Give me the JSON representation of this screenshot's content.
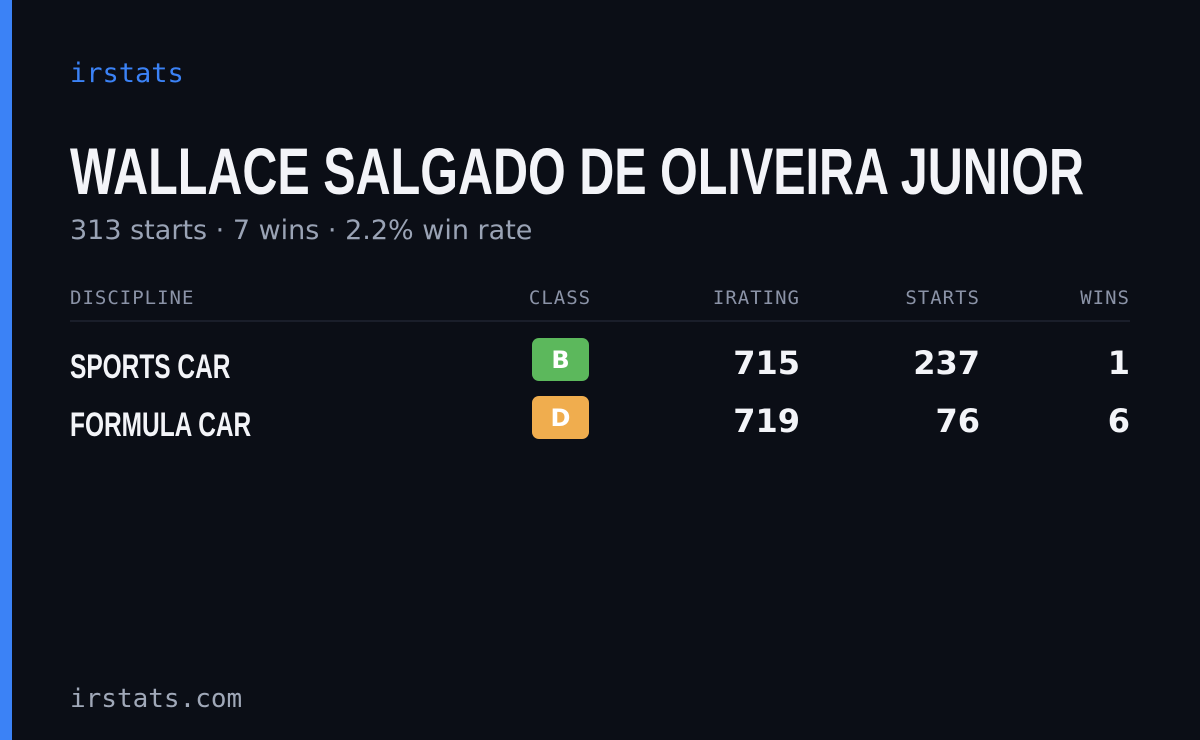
{
  "brand": "irstats",
  "driver": {
    "name": "WALLACE SALGADO DE OLIVEIRA JUNIOR",
    "summary": "313 starts · 7 wins · 2.2% win rate"
  },
  "table": {
    "headers": [
      "DISCIPLINE",
      "CLASS",
      "IRATING",
      "STARTS",
      "WINS"
    ],
    "rows": [
      {
        "discipline": "SPORTS CAR",
        "class": "B",
        "class_color": "#5cb85c",
        "irating": 715,
        "starts": 237,
        "wins": 1
      },
      {
        "discipline": "FORMULA CAR",
        "class": "D",
        "class_color": "#f0ad4e",
        "irating": 719,
        "starts": 76,
        "wins": 6
      }
    ]
  },
  "footer": "irstats.com"
}
